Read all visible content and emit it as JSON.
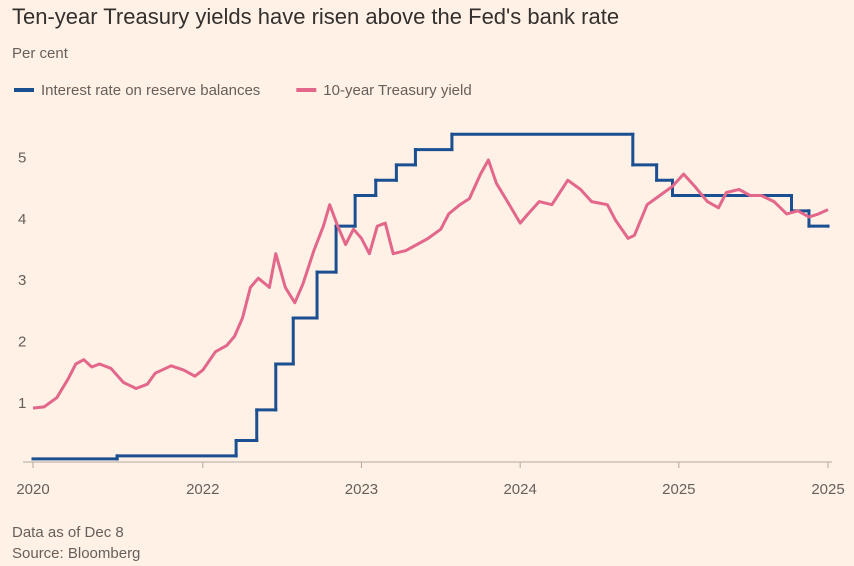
{
  "chart_data": {
    "type": "line",
    "title": "Ten-year Treasury yields have risen above the Fed's bank rate",
    "subtitle": "Per cent",
    "notes": [
      "Data as of Dec 8",
      "Source: Bloomberg"
    ],
    "xlim": [
      2020.93,
      2025.94
    ],
    "xticks": [
      {
        "value": 2020.93,
        "label": "2020"
      },
      2022,
      2023,
      2024,
      2025,
      {
        "value": 2025.94,
        "label": "2025"
      }
    ],
    "ylim": [
      0.05,
      5.6
    ],
    "yticks": [
      1,
      2,
      3,
      4,
      5
    ],
    "grid": false,
    "legend": "top-left",
    "series": [
      {
        "name": "Interest rate on reserve balances",
        "color": "#1a4f91",
        "drawstyle": "steps-post",
        "x": [
          2020.93,
          2021.46,
          2022.21,
          2022.34,
          2022.46,
          2022.57,
          2022.72,
          2022.84,
          2022.96,
          2023.09,
          2023.22,
          2023.34,
          2023.57,
          2024.71,
          2024.86,
          2024.96,
          2025.71,
          2025.82,
          2025.94
        ],
        "values": [
          0.1,
          0.15,
          0.4,
          0.9,
          1.65,
          2.4,
          3.15,
          3.9,
          4.4,
          4.65,
          4.9,
          5.15,
          5.4,
          4.9,
          4.65,
          4.4,
          4.15,
          3.9,
          3.9
        ]
      },
      {
        "name": "10-year Treasury yield",
        "color": "#e3678b",
        "x": [
          2020.93,
          2021.0,
          2021.08,
          2021.15,
          2021.2,
          2021.25,
          2021.3,
          2021.35,
          2021.42,
          2021.5,
          2021.58,
          2021.65,
          2021.7,
          2021.8,
          2021.88,
          2021.95,
          2022.0,
          2022.08,
          2022.15,
          2022.2,
          2022.25,
          2022.3,
          2022.35,
          2022.42,
          2022.46,
          2022.52,
          2022.58,
          2022.63,
          2022.7,
          2022.76,
          2022.8,
          2022.85,
          2022.9,
          2022.95,
          2023.0,
          2023.05,
          2023.1,
          2023.15,
          2023.2,
          2023.28,
          2023.35,
          2023.42,
          2023.5,
          2023.55,
          2023.62,
          2023.68,
          2023.75,
          2023.8,
          2023.85,
          2023.92,
          2024.0,
          2024.05,
          2024.12,
          2024.2,
          2024.3,
          2024.38,
          2024.45,
          2024.55,
          2024.6,
          2024.68,
          2024.72,
          2024.8,
          2024.88,
          2024.96,
          2025.03,
          2025.1,
          2025.18,
          2025.25,
          2025.3,
          2025.38,
          2025.45,
          2025.52,
          2025.6,
          2025.68,
          2025.75,
          2025.82,
          2025.88,
          2025.94
        ],
        "values": [
          0.93,
          0.95,
          1.1,
          1.4,
          1.65,
          1.72,
          1.6,
          1.65,
          1.58,
          1.35,
          1.25,
          1.32,
          1.5,
          1.62,
          1.55,
          1.45,
          1.55,
          1.85,
          1.95,
          2.1,
          2.4,
          2.9,
          3.05,
          2.9,
          3.45,
          2.9,
          2.65,
          2.95,
          3.5,
          3.9,
          4.25,
          3.9,
          3.6,
          3.85,
          3.7,
          3.45,
          3.9,
          3.95,
          3.45,
          3.5,
          3.6,
          3.7,
          3.85,
          4.1,
          4.25,
          4.35,
          4.75,
          4.98,
          4.6,
          4.3,
          3.95,
          4.1,
          4.3,
          4.25,
          4.65,
          4.5,
          4.3,
          4.25,
          4.0,
          3.7,
          3.75,
          4.25,
          4.4,
          4.55,
          4.75,
          4.55,
          4.3,
          4.2,
          4.45,
          4.5,
          4.4,
          4.4,
          4.3,
          4.1,
          4.15,
          4.05,
          4.1,
          4.17
        ]
      }
    ]
  }
}
